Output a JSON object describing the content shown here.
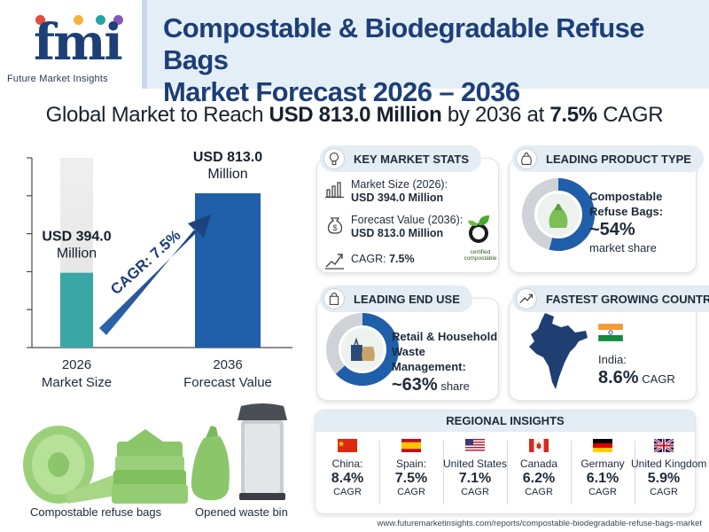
{
  "brand": {
    "logo_text": "fmi",
    "tagline": "Future Market Insights"
  },
  "title": {
    "line1": "Compostable & Biodegradable Refuse Bags",
    "line2": "Market Forecast 2026 – 2036"
  },
  "headline": {
    "prefix": "Global Market to Reach ",
    "value": "USD 813.0 Million",
    "middle": " by 2036 at ",
    "cagr": "7.5%",
    "suffix": " CAGR"
  },
  "chart_data": {
    "type": "bar",
    "categories": [
      "2026",
      "2036"
    ],
    "category_sublabels": [
      "Market Size",
      "Forecast Value"
    ],
    "values": [
      394.0,
      813.0
    ],
    "value_labels": [
      [
        "USD 394.0",
        "Million"
      ],
      [
        "USD 813.0",
        "Million"
      ]
    ],
    "arrow_label": "CAGR: 7.5%",
    "ylim": [
      0,
      1000
    ],
    "colors": [
      "#3aa6a6",
      "#1f5ea8"
    ]
  },
  "key_stats": {
    "title": "KEY MARKET STATS",
    "market_size_label": "Market Size (2026):",
    "market_size_value": "USD 394.0 Million",
    "forecast_label": "Forecast Value (2036):",
    "forecast_value": "USD 813.0 Million",
    "cagr_label": "CAGR: ",
    "cagr_value": "7.5%",
    "badge_line1": "certified",
    "badge_line2": "compostable"
  },
  "product_type": {
    "title": "LEADING PRODUCT TYPE",
    "name_line1": "Compostable",
    "name_line2": "Refuse Bags:",
    "share": "~54%",
    "share_label": "market share",
    "share_fraction": 0.54
  },
  "end_use": {
    "title": "LEADING END USE",
    "name_line1": "Retail & Household",
    "name_line2": "Waste Management:",
    "share": "~63%",
    "share_label": " share",
    "share_fraction": 0.63
  },
  "fastest_country": {
    "title": "FASTEST GROWING COUNTRY",
    "country": "India:",
    "cagr": "8.6%",
    "cagr_label": " CAGR"
  },
  "regional": {
    "title": "REGIONAL INSIGHTS",
    "items": [
      {
        "name": "China:",
        "value": "8.4%",
        "label": "CAGR"
      },
      {
        "name": "Spain:",
        "value": "7.5%",
        "label": "CAGR"
      },
      {
        "name": "United States",
        "value": "7.1%",
        "label": "CAGR"
      },
      {
        "name": "Canada",
        "value": "6.2%",
        "label": "CAGR"
      },
      {
        "name": "Germany",
        "value": "6.1%",
        "label": "CAGR"
      },
      {
        "name": "United Kingdom",
        "value": "5.9%",
        "label": "CAGR"
      }
    ]
  },
  "captions": {
    "bags": "Compostable refuse bags",
    "bin": "Opened waste bin"
  },
  "url": "www.futuremarketinsights.com/reports/compostable-biodegradable-refuse-bags-market",
  "colors": {
    "navy": "#1d3f78",
    "teal": "#3aa6a6",
    "blue": "#1f5ea8",
    "green": "#8cc66a"
  }
}
